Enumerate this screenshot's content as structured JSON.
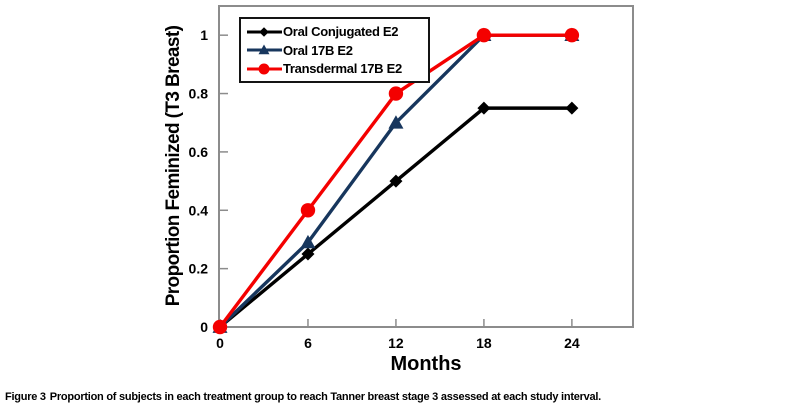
{
  "figure": {
    "caption_label": "Figure 3",
    "caption_text": "Proportion of subjects in each treatment group to reach Tanner breast stage 3 assessed at each study interval."
  },
  "chart_data": {
    "type": "line",
    "x": [
      0,
      6,
      12,
      18,
      24
    ],
    "series": [
      {
        "name": "Oral Conjugated E2",
        "color": "#000000",
        "marker": "diamond",
        "values": [
          0,
          0.25,
          0.5,
          0.75,
          0.75
        ]
      },
      {
        "name": "Oral 17B E2",
        "color": "#17365D",
        "marker": "triangle",
        "values": [
          0,
          0.29,
          0.7,
          1.0,
          1.0
        ]
      },
      {
        "name": "Transdermal 17B E2",
        "color": "#F40000",
        "marker": "circle",
        "values": [
          0,
          0.4,
          0.8,
          1.0,
          1.0
        ]
      }
    ],
    "xlabel": "Months",
    "ylabel": "Proportion Feminized (T3 Breast)",
    "xticks": [
      0,
      6,
      12,
      18,
      24
    ],
    "xtick_labels": [
      "0",
      "6",
      "12",
      "18",
      "24"
    ],
    "yticks": [
      0,
      0.2,
      0.4,
      0.6,
      0.8,
      1
    ],
    "ytick_labels": [
      "0",
      "0.2",
      "0.4",
      "0.6",
      "0.8",
      "1"
    ],
    "xlim": [
      0,
      28.1
    ],
    "ylim": [
      0,
      1.1
    ],
    "grid": false,
    "legend_position": "top-left",
    "axis_color": "#8C8C8C"
  }
}
